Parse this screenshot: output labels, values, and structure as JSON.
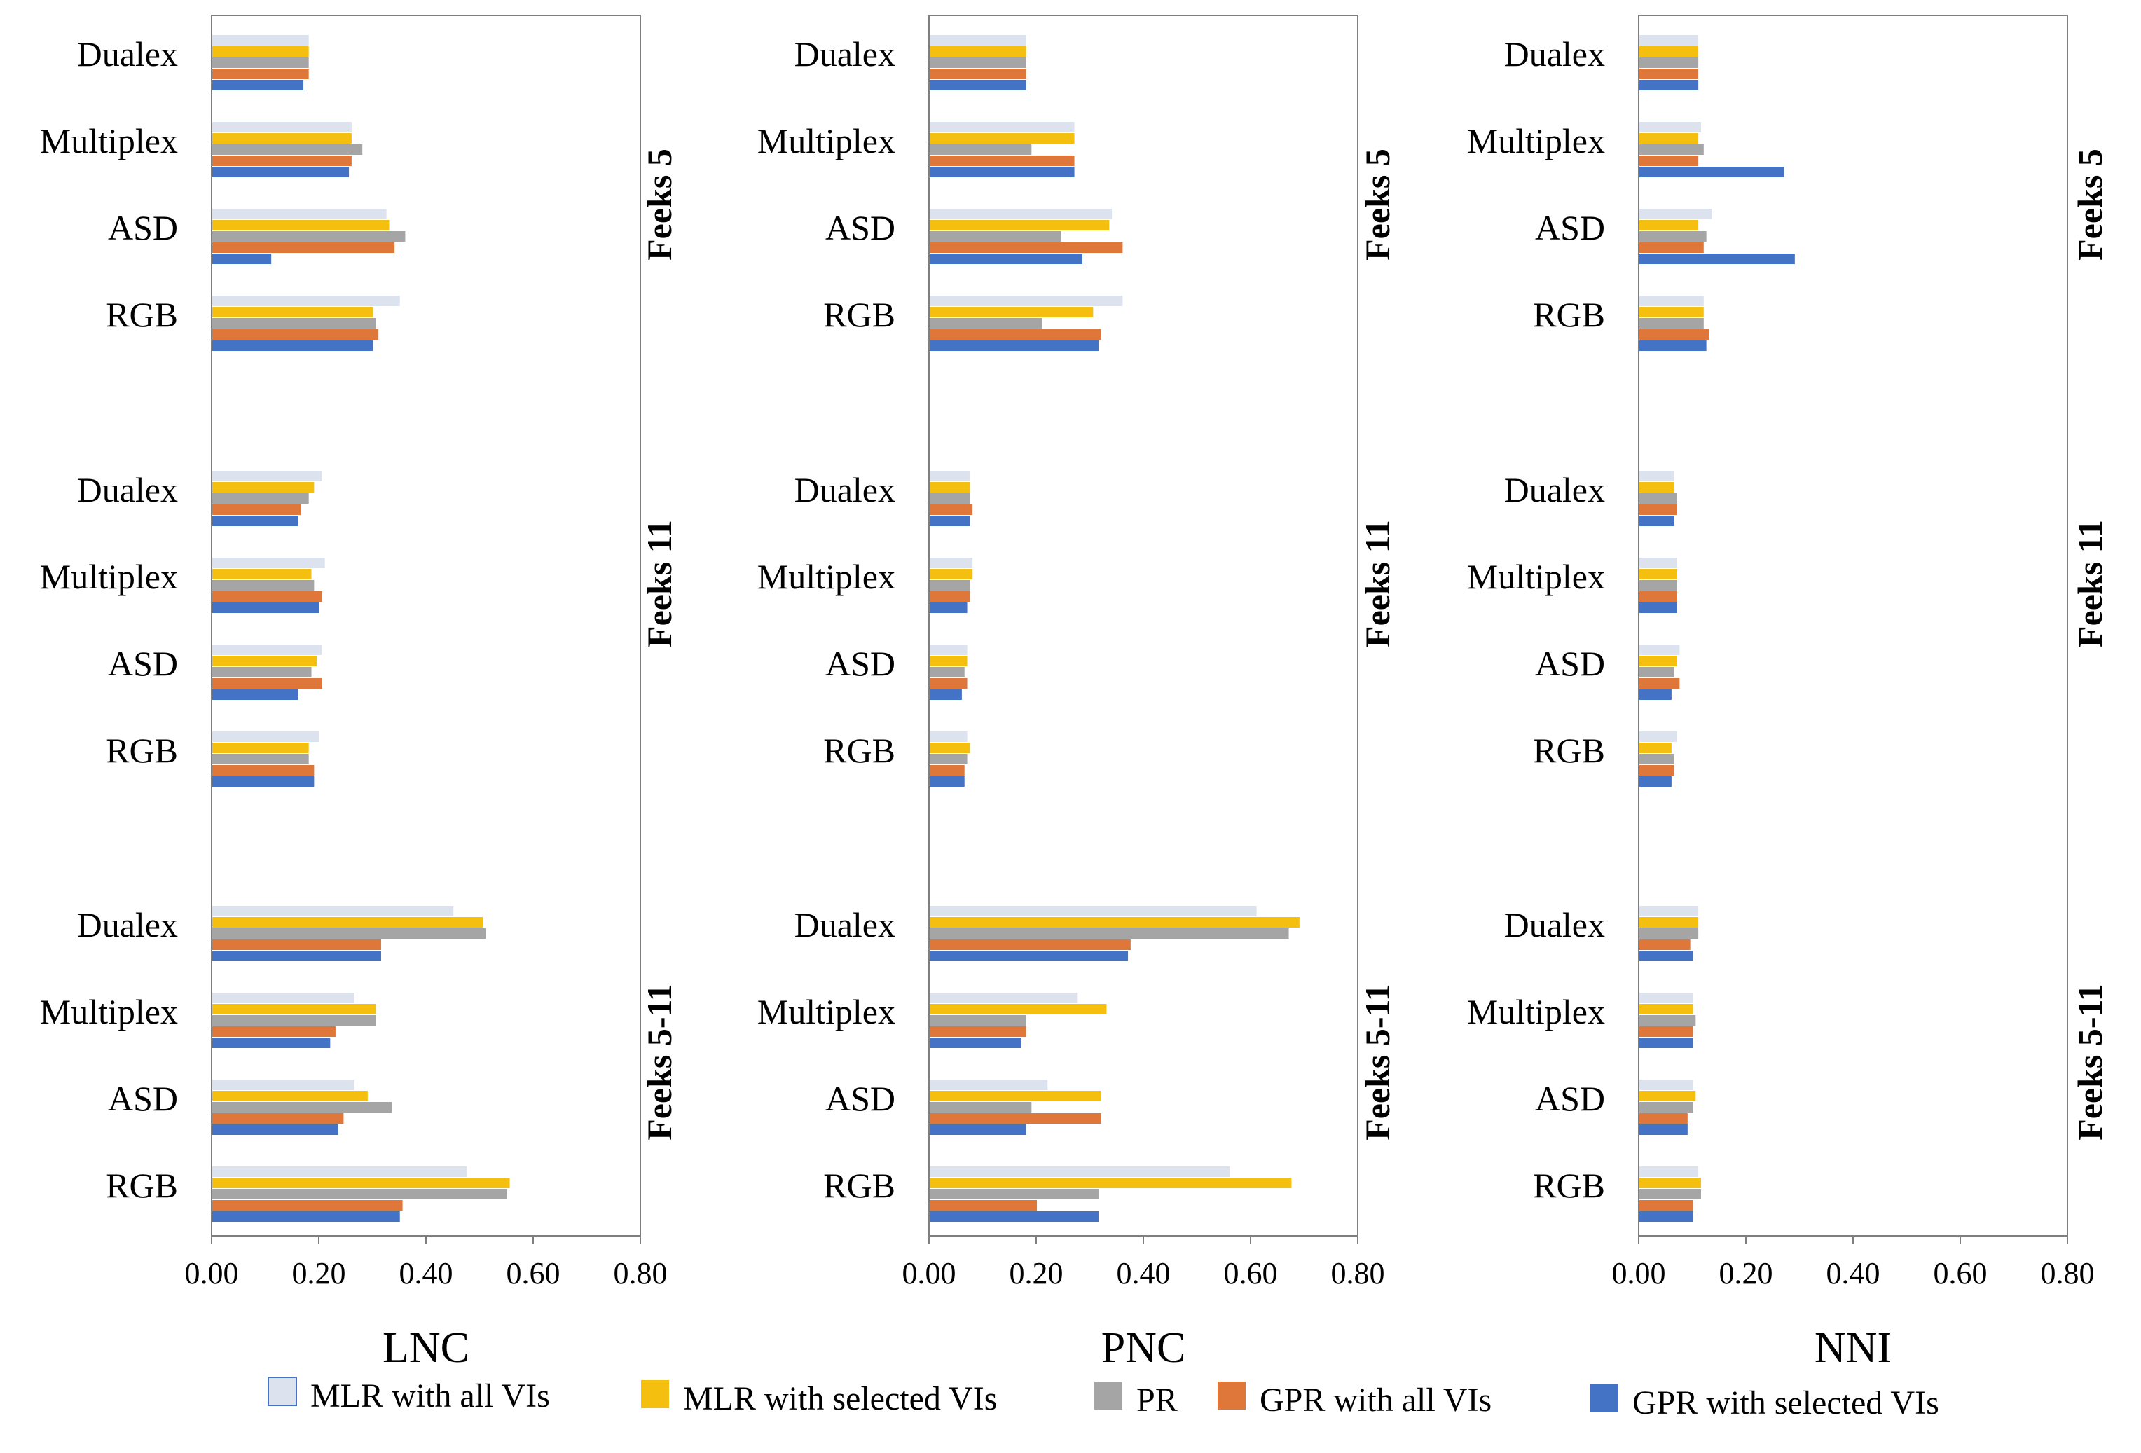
{
  "chart_data": {
    "type": "bar",
    "orientation": "horizontal",
    "sensors": [
      "Dualex",
      "Multiplex",
      "ASD",
      "RGB"
    ],
    "groups": [
      "Feeks 5",
      "Feeks 11",
      "Feeks 5-11"
    ],
    "xlim": [
      0,
      0.8
    ],
    "xticks": [
      "0.00",
      "0.20",
      "0.40",
      "0.60",
      "0.80"
    ],
    "grid": false,
    "legend_position": "bottom",
    "series": [
      {
        "name": "MLR  with all VIs",
        "color": "#dce3ee"
      },
      {
        "name": "MLR  with selected VIs",
        "color": "#f5bf10"
      },
      {
        "name": "PR",
        "color": "#a5a5a5"
      },
      {
        "name": "GPR  with all VIs",
        "color": "#e0773a"
      },
      {
        "name": "GPR  with selected VIs",
        "color": "#4472c4"
      }
    ],
    "panels": [
      {
        "xlabel": "LNC",
        "groups": [
          {
            "label": "Feeks 5",
            "values": [
              [
                0.18,
                0.18,
                0.18,
                0.18,
                0.17
              ],
              [
                0.26,
                0.26,
                0.28,
                0.26,
                0.255
              ],
              [
                0.325,
                0.33,
                0.36,
                0.34,
                0.11
              ],
              [
                0.35,
                0.3,
                0.305,
                0.31,
                0.3
              ]
            ]
          },
          {
            "label": "Feeks 11",
            "values": [
              [
                0.205,
                0.19,
                0.18,
                0.165,
                0.16
              ],
              [
                0.21,
                0.185,
                0.19,
                0.205,
                0.2
              ],
              [
                0.205,
                0.195,
                0.185,
                0.205,
                0.16
              ],
              [
                0.2,
                0.18,
                0.18,
                0.19,
                0.19
              ]
            ]
          },
          {
            "label": "Feeks 5-11",
            "values": [
              [
                0.45,
                0.505,
                0.51,
                0.315,
                0.315
              ],
              [
                0.265,
                0.305,
                0.305,
                0.23,
                0.22
              ],
              [
                0.265,
                0.29,
                0.335,
                0.245,
                0.235
              ],
              [
                0.475,
                0.555,
                0.55,
                0.355,
                0.35
              ]
            ]
          }
        ]
      },
      {
        "xlabel": "PNC",
        "groups": [
          {
            "label": "Feeks 5",
            "values": [
              [
                0.18,
                0.18,
                0.18,
                0.18,
                0.18
              ],
              [
                0.27,
                0.27,
                0.19,
                0.27,
                0.27
              ],
              [
                0.34,
                0.335,
                0.245,
                0.36,
                0.285
              ],
              [
                0.36,
                0.305,
                0.21,
                0.32,
                0.315
              ]
            ]
          },
          {
            "label": "Feeks 11",
            "values": [
              [
                0.075,
                0.075,
                0.075,
                0.08,
                0.075
              ],
              [
                0.08,
                0.08,
                0.075,
                0.075,
                0.07
              ],
              [
                0.07,
                0.07,
                0.065,
                0.07,
                0.06
              ],
              [
                0.07,
                0.075,
                0.07,
                0.065,
                0.065
              ]
            ]
          },
          {
            "label": "Feeks 5-11",
            "values": [
              [
                0.61,
                0.69,
                0.67,
                0.375,
                0.37
              ],
              [
                0.275,
                0.33,
                0.18,
                0.18,
                0.17
              ],
              [
                0.22,
                0.32,
                0.19,
                0.32,
                0.18
              ],
              [
                0.56,
                0.675,
                0.315,
                0.2,
                0.315
              ]
            ]
          }
        ]
      },
      {
        "xlabel": "NNI",
        "groups": [
          {
            "label": "Feeks 5",
            "values": [
              [
                0.11,
                0.11,
                0.11,
                0.11,
                0.11
              ],
              [
                0.115,
                0.11,
                0.12,
                0.11,
                0.27
              ],
              [
                0.135,
                0.11,
                0.125,
                0.12,
                0.29
              ],
              [
                0.12,
                0.12,
                0.12,
                0.13,
                0.125
              ]
            ]
          },
          {
            "label": "Feeks 11",
            "values": [
              [
                0.065,
                0.065,
                0.07,
                0.07,
                0.065
              ],
              [
                0.07,
                0.07,
                0.07,
                0.07,
                0.07
              ],
              [
                0.075,
                0.07,
                0.065,
                0.075,
                0.06
              ],
              [
                0.07,
                0.06,
                0.065,
                0.065,
                0.06
              ]
            ]
          },
          {
            "label": "Feeks 5-11",
            "values": [
              [
                0.11,
                0.11,
                0.11,
                0.095,
                0.1
              ],
              [
                0.1,
                0.1,
                0.105,
                0.1,
                0.1
              ],
              [
                0.1,
                0.105,
                0.1,
                0.09,
                0.09
              ],
              [
                0.11,
                0.115,
                0.115,
                0.1,
                0.1
              ]
            ]
          }
        ]
      }
    ]
  }
}
